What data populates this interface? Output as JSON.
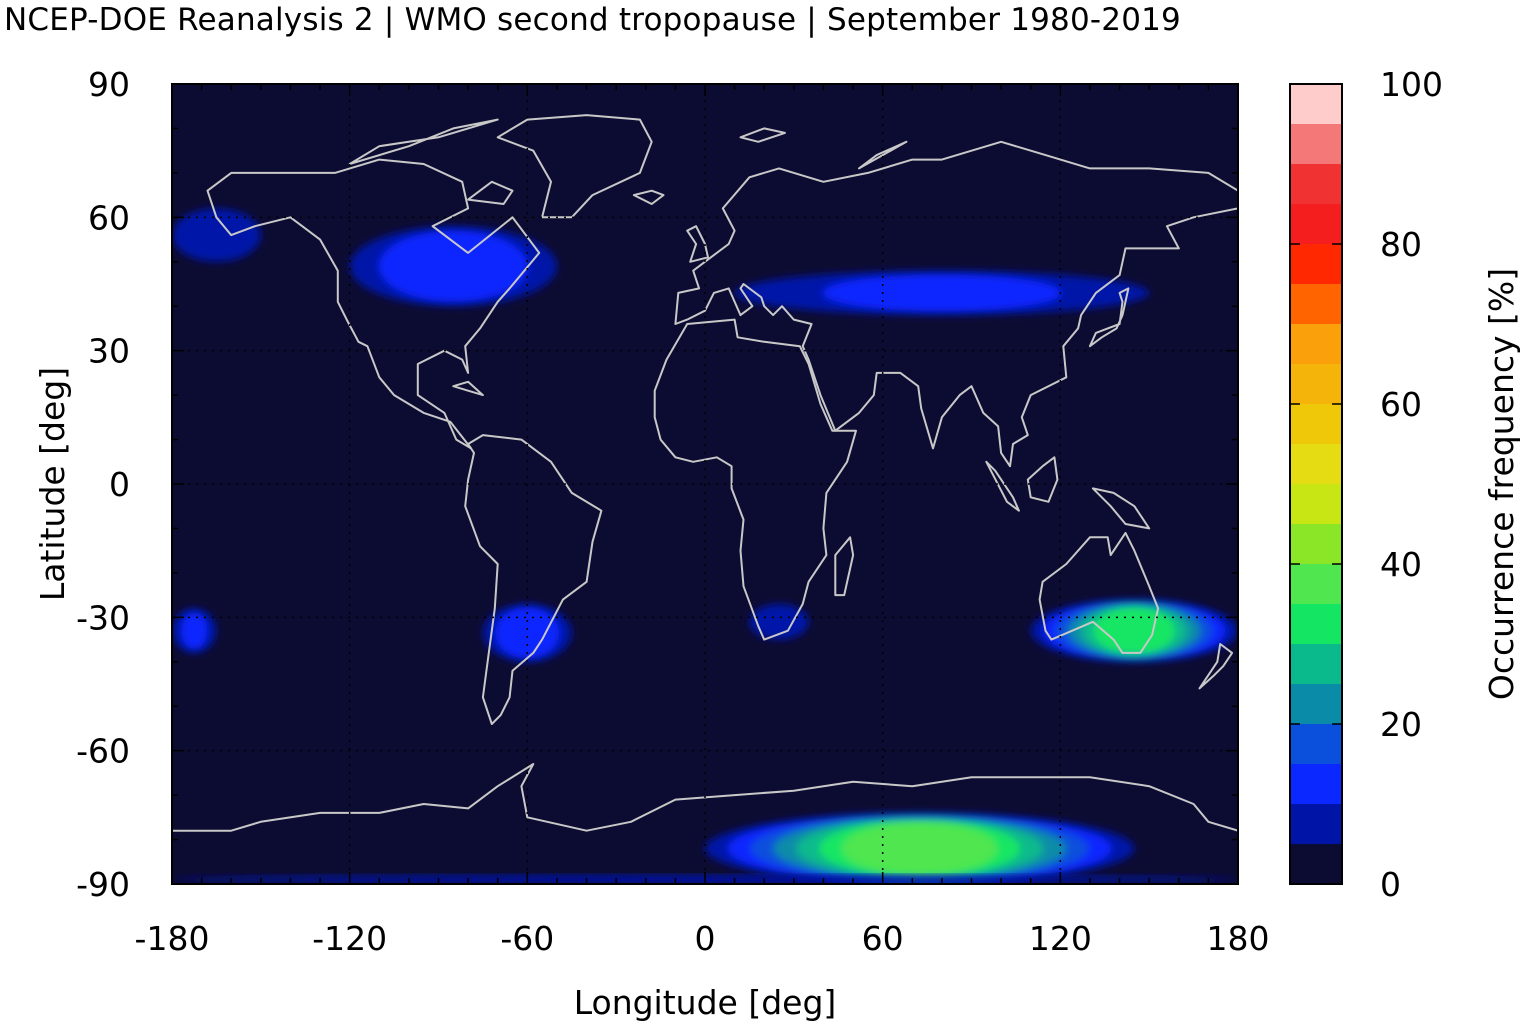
{
  "title": "NCEP-DOE Reanalysis 2 | WMO second tropopause | September 1980-2019",
  "chart_data": {
    "type": "heatmap",
    "title": "NCEP-DOE Reanalysis 2 | WMO second tropopause | September 1980-2019",
    "xlabel": "Longitude [deg]",
    "ylabel": "Latitude [deg]",
    "xlim": [
      -180,
      180
    ],
    "ylim": [
      -90,
      90
    ],
    "x_ticks": [
      -180,
      -120,
      -60,
      0,
      60,
      120,
      180
    ],
    "y_ticks": [
      90,
      60,
      30,
      0,
      -30,
      -60,
      -90
    ],
    "grid": true,
    "background_value": 0,
    "coastlines": true,
    "colorbar": {
      "label": "Occurrence frequency [%]",
      "range": [
        0,
        100
      ],
      "ticks": [
        0,
        20,
        40,
        60,
        80,
        100
      ],
      "levels": [
        {
          "from": 0,
          "to": 5,
          "color": "#0c0c32"
        },
        {
          "from": 5,
          "to": 10,
          "color": "#0014a8"
        },
        {
          "from": 10,
          "to": 15,
          "color": "#0a28ff"
        },
        {
          "from": 15,
          "to": 20,
          "color": "#0a50dc"
        },
        {
          "from": 20,
          "to": 25,
          "color": "#0a8ca8"
        },
        {
          "from": 25,
          "to": 30,
          "color": "#0aba8c"
        },
        {
          "from": 30,
          "to": 35,
          "color": "#14e664"
        },
        {
          "from": 35,
          "to": 40,
          "color": "#50e650"
        },
        {
          "from": 40,
          "to": 45,
          "color": "#8ce628"
        },
        {
          "from": 45,
          "to": 50,
          "color": "#c8e614"
        },
        {
          "from": 50,
          "to": 55,
          "color": "#e6dc14"
        },
        {
          "from": 55,
          "to": 60,
          "color": "#f0c80a"
        },
        {
          "from": 60,
          "to": 65,
          "color": "#f5b40a"
        },
        {
          "from": 65,
          "to": 70,
          "color": "#faa00a"
        },
        {
          "from": 70,
          "to": 75,
          "color": "#ff6400"
        },
        {
          "from": 75,
          "to": 80,
          "color": "#ff2800"
        },
        {
          "from": 80,
          "to": 85,
          "color": "#f51e1e"
        },
        {
          "from": 85,
          "to": 90,
          "color": "#f03232"
        },
        {
          "from": 90,
          "to": 95,
          "color": "#f57878"
        },
        {
          "from": 95,
          "to": 100,
          "color": "#ffcccc"
        }
      ]
    },
    "regions": [
      {
        "name": "North America",
        "lon": [
          -120,
          -50
        ],
        "lat": [
          40,
          58
        ],
        "peak_value": 12
      },
      {
        "name": "Alaska",
        "lon": [
          -180,
          -150
        ],
        "lat": [
          50,
          62
        ],
        "peak_value": 7
      },
      {
        "name": "Eurasia band",
        "lon": [
          10,
          150
        ],
        "lat": [
          38,
          48
        ],
        "peak_value": 10
      },
      {
        "name": "Southern South America",
        "lon": [
          -75,
          -45
        ],
        "lat": [
          -40,
          -27
        ],
        "peak_value": 12
      },
      {
        "name": "South Africa",
        "lon": [
          15,
          35
        ],
        "lat": [
          -35,
          -27
        ],
        "peak_value": 9
      },
      {
        "name": "Australia and Tasman Sea",
        "lon": [
          110,
          180
        ],
        "lat": [
          -40,
          -26
        ],
        "peak_value": 33
      },
      {
        "name": "South Pacific",
        "lon": [
          -180,
          -165
        ],
        "lat": [
          -38,
          -28
        ],
        "peak_value": 10
      },
      {
        "name": "East Antarctica",
        "lon": [
          0,
          145
        ],
        "lat": [
          -90,
          -74
        ],
        "peak_value": 36
      },
      {
        "name": "Antarctic edge",
        "lon": [
          -180,
          180
        ],
        "lat": [
          -90,
          -88
        ],
        "peak_value": 6
      }
    ]
  }
}
